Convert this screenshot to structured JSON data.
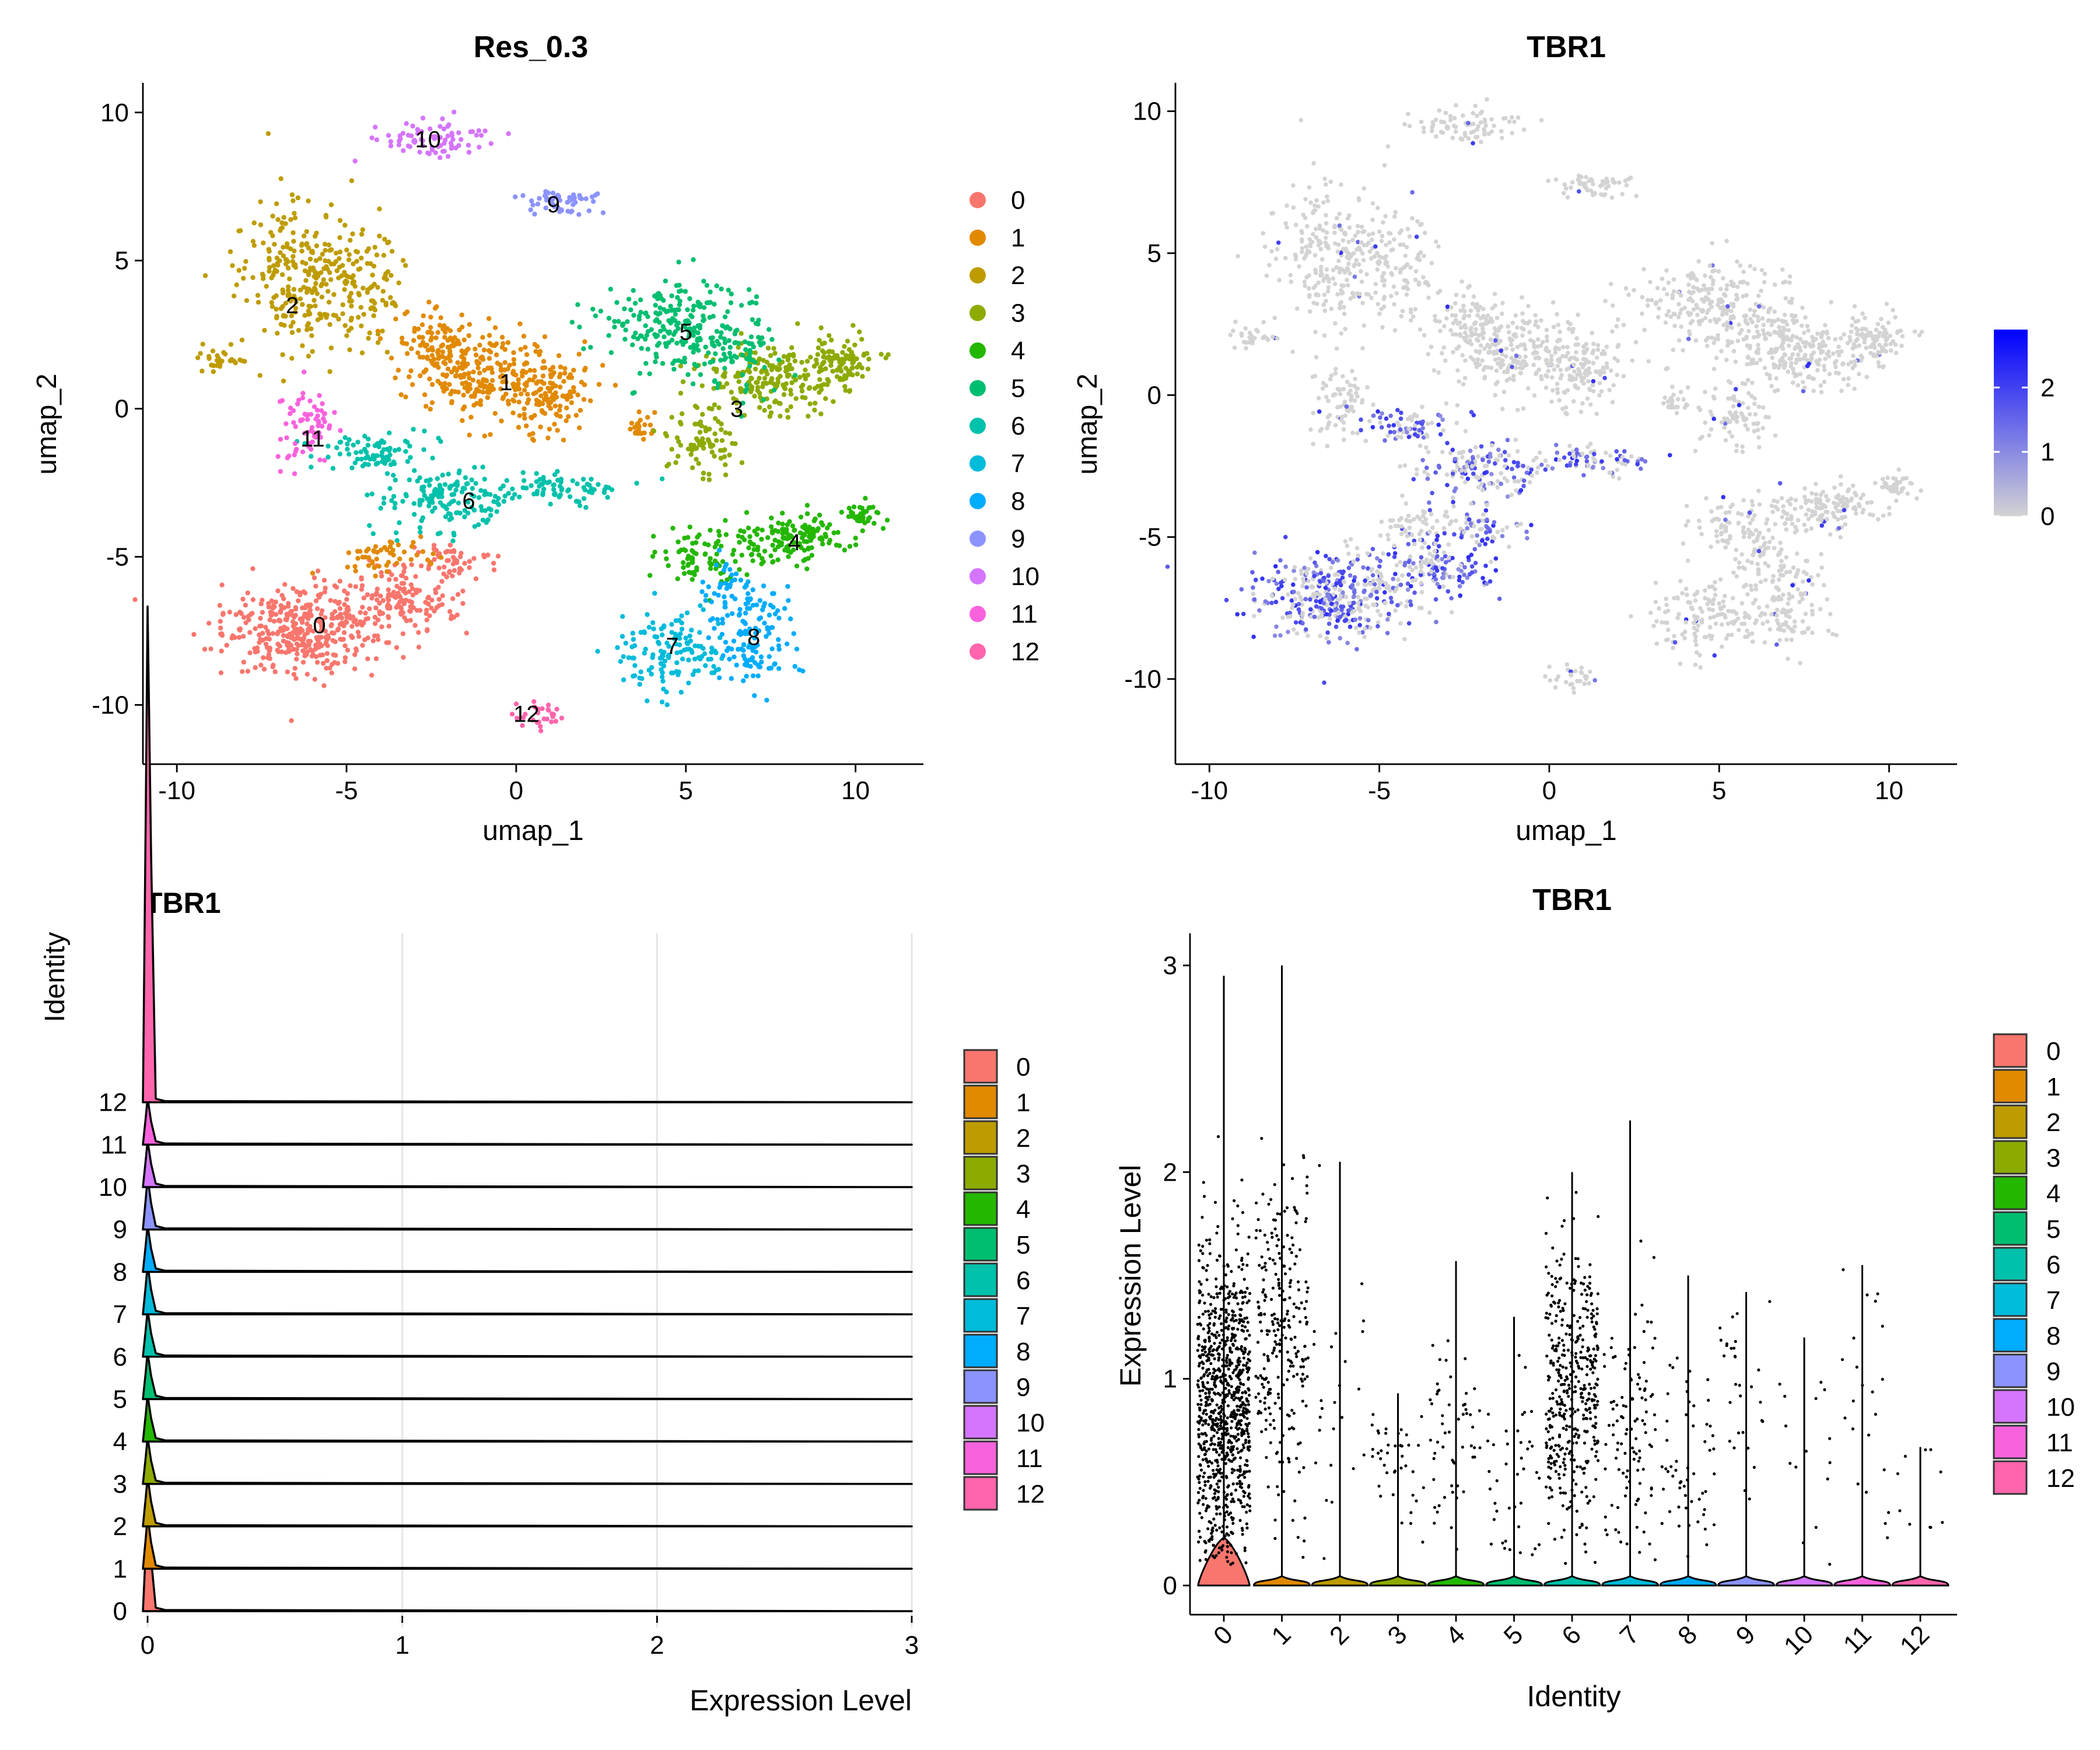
{
  "colors": {
    "clusters": [
      "#F8766D",
      "#E18A00",
      "#BE9C00",
      "#8CAB00",
      "#24B700",
      "#00BE70",
      "#00C1AB",
      "#00BBDA",
      "#00ACFC",
      "#8B93FF",
      "#D575FE",
      "#F962DD",
      "#FF65AC"
    ],
    "feature_low": "#D3D3D3",
    "feature_high": "#0000FF"
  },
  "chart_data": [
    {
      "type": "scatter",
      "title": "Res_0.3",
      "xlabel": "umap_1",
      "ylabel": "umap_2",
      "xlim": [
        -11,
        12
      ],
      "ylim": [
        -12,
        11
      ],
      "xticks": [
        -10,
        -5,
        0,
        5,
        10
      ],
      "yticks": [
        -10,
        -5,
        0,
        5,
        10
      ],
      "xtick_labels": [
        "-10",
        "-5",
        "0",
        "5",
        "10"
      ],
      "ytick_labels": [
        "-10",
        "-5",
        "0",
        "5",
        "10"
      ],
      "legend": [
        "0",
        "1",
        "2",
        "3",
        "4",
        "5",
        "6",
        "7",
        "8",
        "9",
        "10",
        "11",
        "12"
      ],
      "legend_position": "right",
      "cluster_labels": [
        {
          "label": "0",
          "x": -5.8,
          "y": -7.3
        },
        {
          "label": "1",
          "x": -0.3,
          "y": 0.9
        },
        {
          "label": "2",
          "x": -6.6,
          "y": 3.5
        },
        {
          "label": "3",
          "x": 6.5,
          "y": 0.0
        },
        {
          "label": "4",
          "x": 8.2,
          "y": -4.5
        },
        {
          "label": "5",
          "x": 5.0,
          "y": 2.6
        },
        {
          "label": "6",
          "x": -1.4,
          "y": -3.1
        },
        {
          "label": "7",
          "x": 4.6,
          "y": -8.0
        },
        {
          "label": "8",
          "x": 7.0,
          "y": -7.7
        },
        {
          "label": "9",
          "x": 1.1,
          "y": 6.9
        },
        {
          "label": "10",
          "x": -2.6,
          "y": 9.1
        },
        {
          "label": "11",
          "x": -6.0,
          "y": -1.0
        },
        {
          "label": "12",
          "x": 0.3,
          "y": -10.3
        }
      ]
    },
    {
      "type": "scatter",
      "title": "TBR1",
      "xlabel": "umap_1",
      "ylabel": "umap_2",
      "xlim": [
        -11,
        12
      ],
      "ylim": [
        -13,
        11
      ],
      "xticks": [
        -10,
        -5,
        0,
        5,
        10
      ],
      "yticks": [
        -10,
        -5,
        0,
        5,
        10
      ],
      "xtick_labels": [
        "-10",
        "-5",
        "0",
        "5",
        "10"
      ],
      "ytick_labels": [
        "-10",
        "-5",
        "0",
        "5",
        "10"
      ],
      "colorbar": {
        "range": [
          0,
          2.9
        ],
        "ticks": [
          0,
          1,
          2
        ],
        "tick_labels": [
          "0",
          "1",
          "2"
        ]
      }
    },
    {
      "type": "area",
      "title": "TBR1",
      "xlabel": "Expression Level",
      "ylabel": "Identity",
      "xlim": [
        0,
        3
      ],
      "xticks": [
        0,
        1,
        2,
        3
      ],
      "xtick_labels": [
        "0",
        "1",
        "2",
        "3"
      ],
      "categories": [
        "0",
        "1",
        "2",
        "3",
        "4",
        "5",
        "6",
        "7",
        "8",
        "9",
        "10",
        "11",
        "12"
      ],
      "legend": [
        "0",
        "1",
        "2",
        "3",
        "4",
        "5",
        "6",
        "7",
        "8",
        "9",
        "10",
        "11",
        "12"
      ],
      "legend_position": "right",
      "grid": true
    },
    {
      "type": "scatter",
      "title": "TBR1",
      "xlabel": "Identity",
      "ylabel": "Expression Level",
      "ylim": [
        0,
        3
      ],
      "yticks": [
        0,
        1,
        2,
        3
      ],
      "ytick_labels": [
        "0",
        "1",
        "2",
        "3"
      ],
      "categories": [
        "0",
        "1",
        "2",
        "3",
        "4",
        "5",
        "6",
        "7",
        "8",
        "9",
        "10",
        "11",
        "12"
      ],
      "max_values": [
        2.95,
        3.0,
        2.05,
        0.93,
        1.57,
        1.3,
        2.0,
        2.25,
        1.5,
        1.42,
        1.2,
        1.55,
        0.67
      ],
      "legend": [
        "0",
        "1",
        "2",
        "3",
        "4",
        "5",
        "6",
        "7",
        "8",
        "9",
        "10",
        "11",
        "12"
      ],
      "legend_position": "right"
    }
  ]
}
